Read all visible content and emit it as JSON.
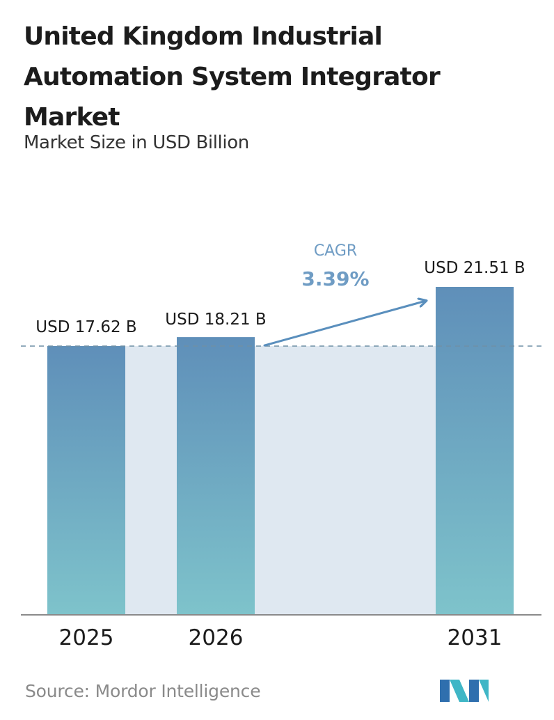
{
  "header": {
    "title": "United Kingdom Industrial Automation System Integrator Market",
    "subtitle": "Market Size in USD Billion"
  },
  "footer": {
    "source": "Source:  Mordor Intelligence",
    "logo_icon": "mordor-intelligence-logo-icon"
  },
  "colors": {
    "bar_top": "#5f8fb9",
    "bar_bottom": "#7ec3cb",
    "band": "#dfe8f1",
    "cagr_label": "#6f9cc4",
    "arrow": "#5a8fbd",
    "reference_line": "#6f8fa6",
    "baseline": "#8a8a8a"
  },
  "chart_data": {
    "type": "bar",
    "title": "United Kingdom Industrial Automation System Integrator Market",
    "subtitle": "Market Size in USD Billion",
    "categories": [
      "2025",
      "2026",
      "2031"
    ],
    "values": [
      17.62,
      18.21,
      21.51
    ],
    "data_labels": [
      "USD 17.62 B",
      "USD 18.21 B",
      "USD 21.51 B"
    ],
    "annotation": {
      "label": "CAGR",
      "value": "3.39%",
      "from": "2026",
      "to": "2031"
    },
    "reference_line": {
      "value": 17.62,
      "style": "dashed"
    },
    "grid": false,
    "legend": "none"
  }
}
